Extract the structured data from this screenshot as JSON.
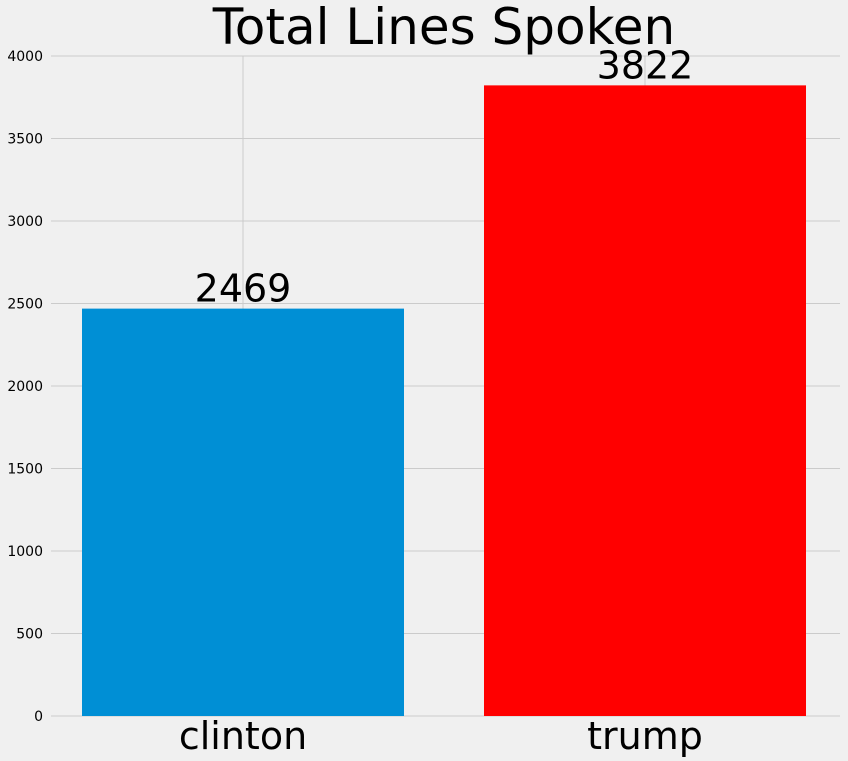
{
  "chart_data": {
    "type": "bar",
    "title": "Total Lines Spoken",
    "xlabel": "",
    "ylabel": "",
    "categories": [
      "clinton",
      "trump"
    ],
    "values": [
      2469,
      3822
    ],
    "data_labels": [
      "2469",
      "3822"
    ],
    "colors": [
      "#008fd5",
      "#ff0000"
    ],
    "ylim": [
      0,
      4000
    ],
    "yticks": [
      0,
      500,
      1000,
      1500,
      2000,
      2500,
      3000,
      3500,
      4000
    ],
    "grid": true,
    "legend": "none",
    "background": "#f0f0f0",
    "grid_color": "#cbcbcb"
  }
}
